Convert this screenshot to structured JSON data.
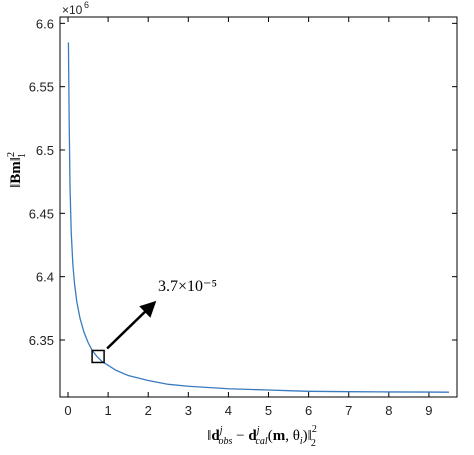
{
  "chart_data": {
    "type": "line",
    "title": "",
    "xlabel": "‖d_obs^j − d_cal^j(m, θ_i)‖₂²",
    "ylabel": "‖Bm‖₁²",
    "xlim": [
      -0.2,
      9.7
    ],
    "ylim": [
      6.305,
      6.605
    ],
    "y_multiplier": "×10^6",
    "x_ticks": [
      0,
      1,
      2,
      3,
      4,
      5,
      6,
      7,
      8,
      9
    ],
    "y_ticks": [
      6.35,
      6.4,
      6.45,
      6.5,
      6.55,
      6.6
    ],
    "x_tick_labels": [
      "0",
      "1",
      "2",
      "3",
      "4",
      "5",
      "6",
      "7",
      "8",
      "9"
    ],
    "y_tick_labels": [
      "6.35",
      "6.4",
      "6.45",
      "6.5",
      "6.55",
      "6.6"
    ],
    "grid": false,
    "series": [
      {
        "color": "#3a7bbf",
        "x": [
          0.01,
          0.03,
          0.05,
          0.08,
          0.12,
          0.16,
          0.22,
          0.3,
          0.4,
          0.5,
          0.6,
          0.72,
          0.85,
          1.0,
          1.2,
          1.5,
          2.0,
          2.5,
          3.0,
          3.5,
          4.0,
          4.5,
          5.0,
          5.5,
          6.0,
          7.0,
          8.0,
          9.0,
          9.5
        ],
        "y": [
          6.585,
          6.52,
          6.47,
          6.435,
          6.41,
          6.395,
          6.38,
          6.367,
          6.356,
          6.348,
          6.342,
          6.337,
          6.333,
          6.33,
          6.326,
          6.322,
          6.318,
          6.315,
          6.3135,
          6.3125,
          6.3115,
          6.311,
          6.3105,
          6.31,
          6.3095,
          6.3092,
          6.309,
          6.3089,
          6.3088
        ]
      }
    ],
    "annotations": [
      {
        "label": "3.7×10⁻⁵",
        "marker_x": 0.75,
        "marker_y": 6.337,
        "arrow": true
      }
    ]
  }
}
